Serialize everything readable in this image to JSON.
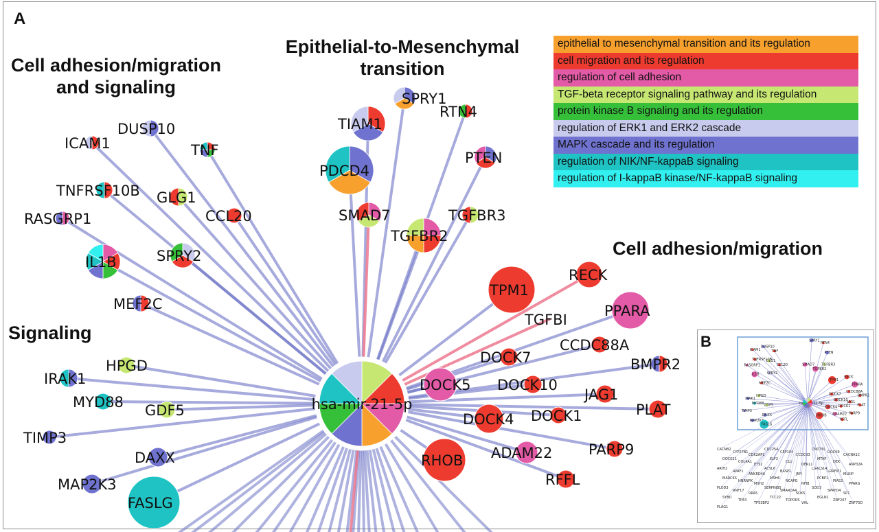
{
  "panel_a": "A",
  "panel_b": "B",
  "clusters": {
    "emt": [
      "Epithelial-to-Mesenchymal",
      "transition"
    ],
    "adhesion_signaling": [
      "Cell adhesion/migration",
      "and signaling"
    ],
    "adhesion": [
      "Cell adhesion/migration"
    ],
    "signaling": [
      "Signaling"
    ]
  },
  "legend": [
    {
      "label": "epithelial to mesenchymal transition and its regulation",
      "color": "#f7a02e"
    },
    {
      "label": "cell migration and its regulation",
      "color": "#ee3b2f"
    },
    {
      "label": "regulation of cell adhesion",
      "color": "#e35aa6"
    },
    {
      "label": "TGF-beta receptor signaling pathway and its regulation",
      "color": "#c6e873"
    },
    {
      "label": "protein kinase B signaling and its regulation",
      "color": "#36c03a"
    },
    {
      "label": "regulation of ERK1 and ERK2 cascade",
      "color": "#c9cbee"
    },
    {
      "label": "MAPK cascade and its regulation",
      "color": "#6f73cf"
    },
    {
      "label": "regulation of NIK/NF-kappaB signaling",
      "color": "#1fc3c3"
    },
    {
      "label": "regulation of I-kappaB kinase/NF-kappaB signaling",
      "color": "#33f0f0"
    }
  ],
  "hub": {
    "label": "hsa-mir-21-5p",
    "categories": [
      0,
      1,
      2,
      3,
      4,
      5,
      6,
      7
    ]
  },
  "genes": [
    {
      "label": "SPRY1",
      "cats": [
        6,
        0,
        5
      ]
    },
    {
      "label": "TIAM1",
      "cats": [
        1,
        6,
        5
      ]
    },
    {
      "label": "RTN4",
      "cats": [
        1,
        4
      ]
    },
    {
      "label": "PDCD4",
      "cats": [
        6,
        0,
        7
      ]
    },
    {
      "label": "PTEN",
      "cats": [
        6,
        1,
        2
      ]
    },
    {
      "label": "SMAD7",
      "cats": [
        2,
        3,
        1
      ]
    },
    {
      "label": "TGFBR2",
      "cats": [
        2,
        1,
        0,
        3
      ]
    },
    {
      "label": "TGFBR3",
      "cats": [
        3,
        1
      ]
    },
    {
      "label": "DUSP10",
      "cats": [
        6,
        5
      ]
    },
    {
      "label": "ICAM1",
      "cats": [
        1,
        5
      ]
    },
    {
      "label": "TNF",
      "cats": [
        1,
        4,
        6,
        7
      ]
    },
    {
      "label": "TNFRSF10B",
      "cats": [
        1,
        7
      ]
    },
    {
      "label": "GLG1",
      "cats": [
        3,
        1
      ]
    },
    {
      "label": "CCL20",
      "cats": [
        1
      ]
    },
    {
      "label": "RASGRP1",
      "cats": [
        2,
        6
      ]
    },
    {
      "label": "IL1B",
      "cats": [
        2,
        1,
        4,
        6,
        7,
        8
      ]
    },
    {
      "label": "SPRY2",
      "cats": [
        5,
        1,
        4
      ]
    },
    {
      "label": "MEF2C",
      "cats": [
        1,
        6
      ]
    },
    {
      "label": "TPM1",
      "cats": [
        1
      ]
    },
    {
      "label": "RECK",
      "cats": [
        1
      ]
    },
    {
      "label": "PPARA",
      "cats": [
        2
      ]
    },
    {
      "label": "TGFBI",
      "cats": []
    },
    {
      "label": "DOCK7",
      "cats": [
        1
      ]
    },
    {
      "label": "CCDC88A",
      "cats": [
        1
      ]
    },
    {
      "label": "BMPR2",
      "cats": [
        1,
        6
      ]
    },
    {
      "label": "DOCK5",
      "cats": [
        2
      ]
    },
    {
      "label": "DOCK10",
      "cats": [
        1
      ]
    },
    {
      "label": "JAG1",
      "cats": [
        1
      ]
    },
    {
      "label": "PLAT",
      "cats": [
        1
      ]
    },
    {
      "label": "DOCK4",
      "cats": [
        1
      ]
    },
    {
      "label": "DOCK1",
      "cats": [
        1
      ]
    },
    {
      "label": "PARP9",
      "cats": [
        1
      ]
    },
    {
      "label": "RHOB",
      "cats": [
        1
      ]
    },
    {
      "label": "ADAM22",
      "cats": [
        2
      ]
    },
    {
      "label": "RFFL",
      "cats": [
        1
      ]
    },
    {
      "label": "HPGD",
      "cats": [
        3
      ]
    },
    {
      "label": "IRAK1",
      "cats": [
        6,
        7
      ]
    },
    {
      "label": "MYD88",
      "cats": [
        7
      ]
    },
    {
      "label": "GDF5",
      "cats": [
        3
      ]
    },
    {
      "label": "TIMP3",
      "cats": [
        6
      ]
    },
    {
      "label": "DAXX",
      "cats": [
        6
      ]
    },
    {
      "label": "MAP2K3",
      "cats": [
        6
      ]
    },
    {
      "label": "FASLG",
      "cats": [
        7
      ]
    }
  ],
  "inset_top_labels": [
    "SPRY1",
    "RTN4",
    "ICAM1",
    "DUSP10",
    "TNF",
    "PTEN",
    "TNFRSF10B",
    "GLG1",
    "CCL20",
    "SMAD7",
    "TGFBR3",
    "RASGRP1",
    "SPRY2",
    "TGFBR2",
    "IL1B",
    "MEF2C",
    "TPM1",
    "RECK",
    "PPARA",
    "CCDC88A",
    "DOCK7",
    "BMPR2",
    "DOCK10",
    "JAG1",
    "PLAT",
    "HPGD",
    "IRAK1",
    "MYD88",
    "GDF5",
    "DOCK4",
    "DOCK1",
    "PARP9",
    "TIMP3",
    "DAXX",
    "ADAM22",
    "RHOB",
    "RFFL",
    "MAP2K3",
    "FASLG",
    "hsa-mir-21-5p"
  ],
  "inset_bottom_labels": [
    "CACNB2",
    "CYP27B1",
    "CDK2AP1",
    "CDC25A",
    "CEP104",
    "CCDC93",
    "CNOT6L",
    "DOCK9",
    "CACNA1C",
    "DOCK11",
    "COL4A1",
    "ETS2",
    "ELF2",
    "CLU",
    "DERL1",
    "MTAP",
    "DEK",
    "ANP32A",
    "ARIH2",
    "APAF1",
    "ANKRD46",
    "ACSL6",
    "BASP1",
    "JMY",
    "LGALS14",
    "LRRFIP1",
    "MLKIP",
    "MARCKS",
    "HNRNPK",
    "MSH2",
    "MSH6",
    "NCAPG",
    "NFIB",
    "PCBP1",
    "PIAS3",
    "PPARG",
    "PLOD3",
    "RNF17",
    "RRAS",
    "SERPINB5",
    "SMARCA4",
    "SOX5",
    "SOD3",
    "SPRYD4",
    "SP1",
    "SYBU",
    "TP63",
    "TP53BP2",
    "TCC22",
    "TOPORS",
    "VHL",
    "EGLN1",
    "ZNF207",
    "ZNF75D",
    "PLAG1"
  ]
}
